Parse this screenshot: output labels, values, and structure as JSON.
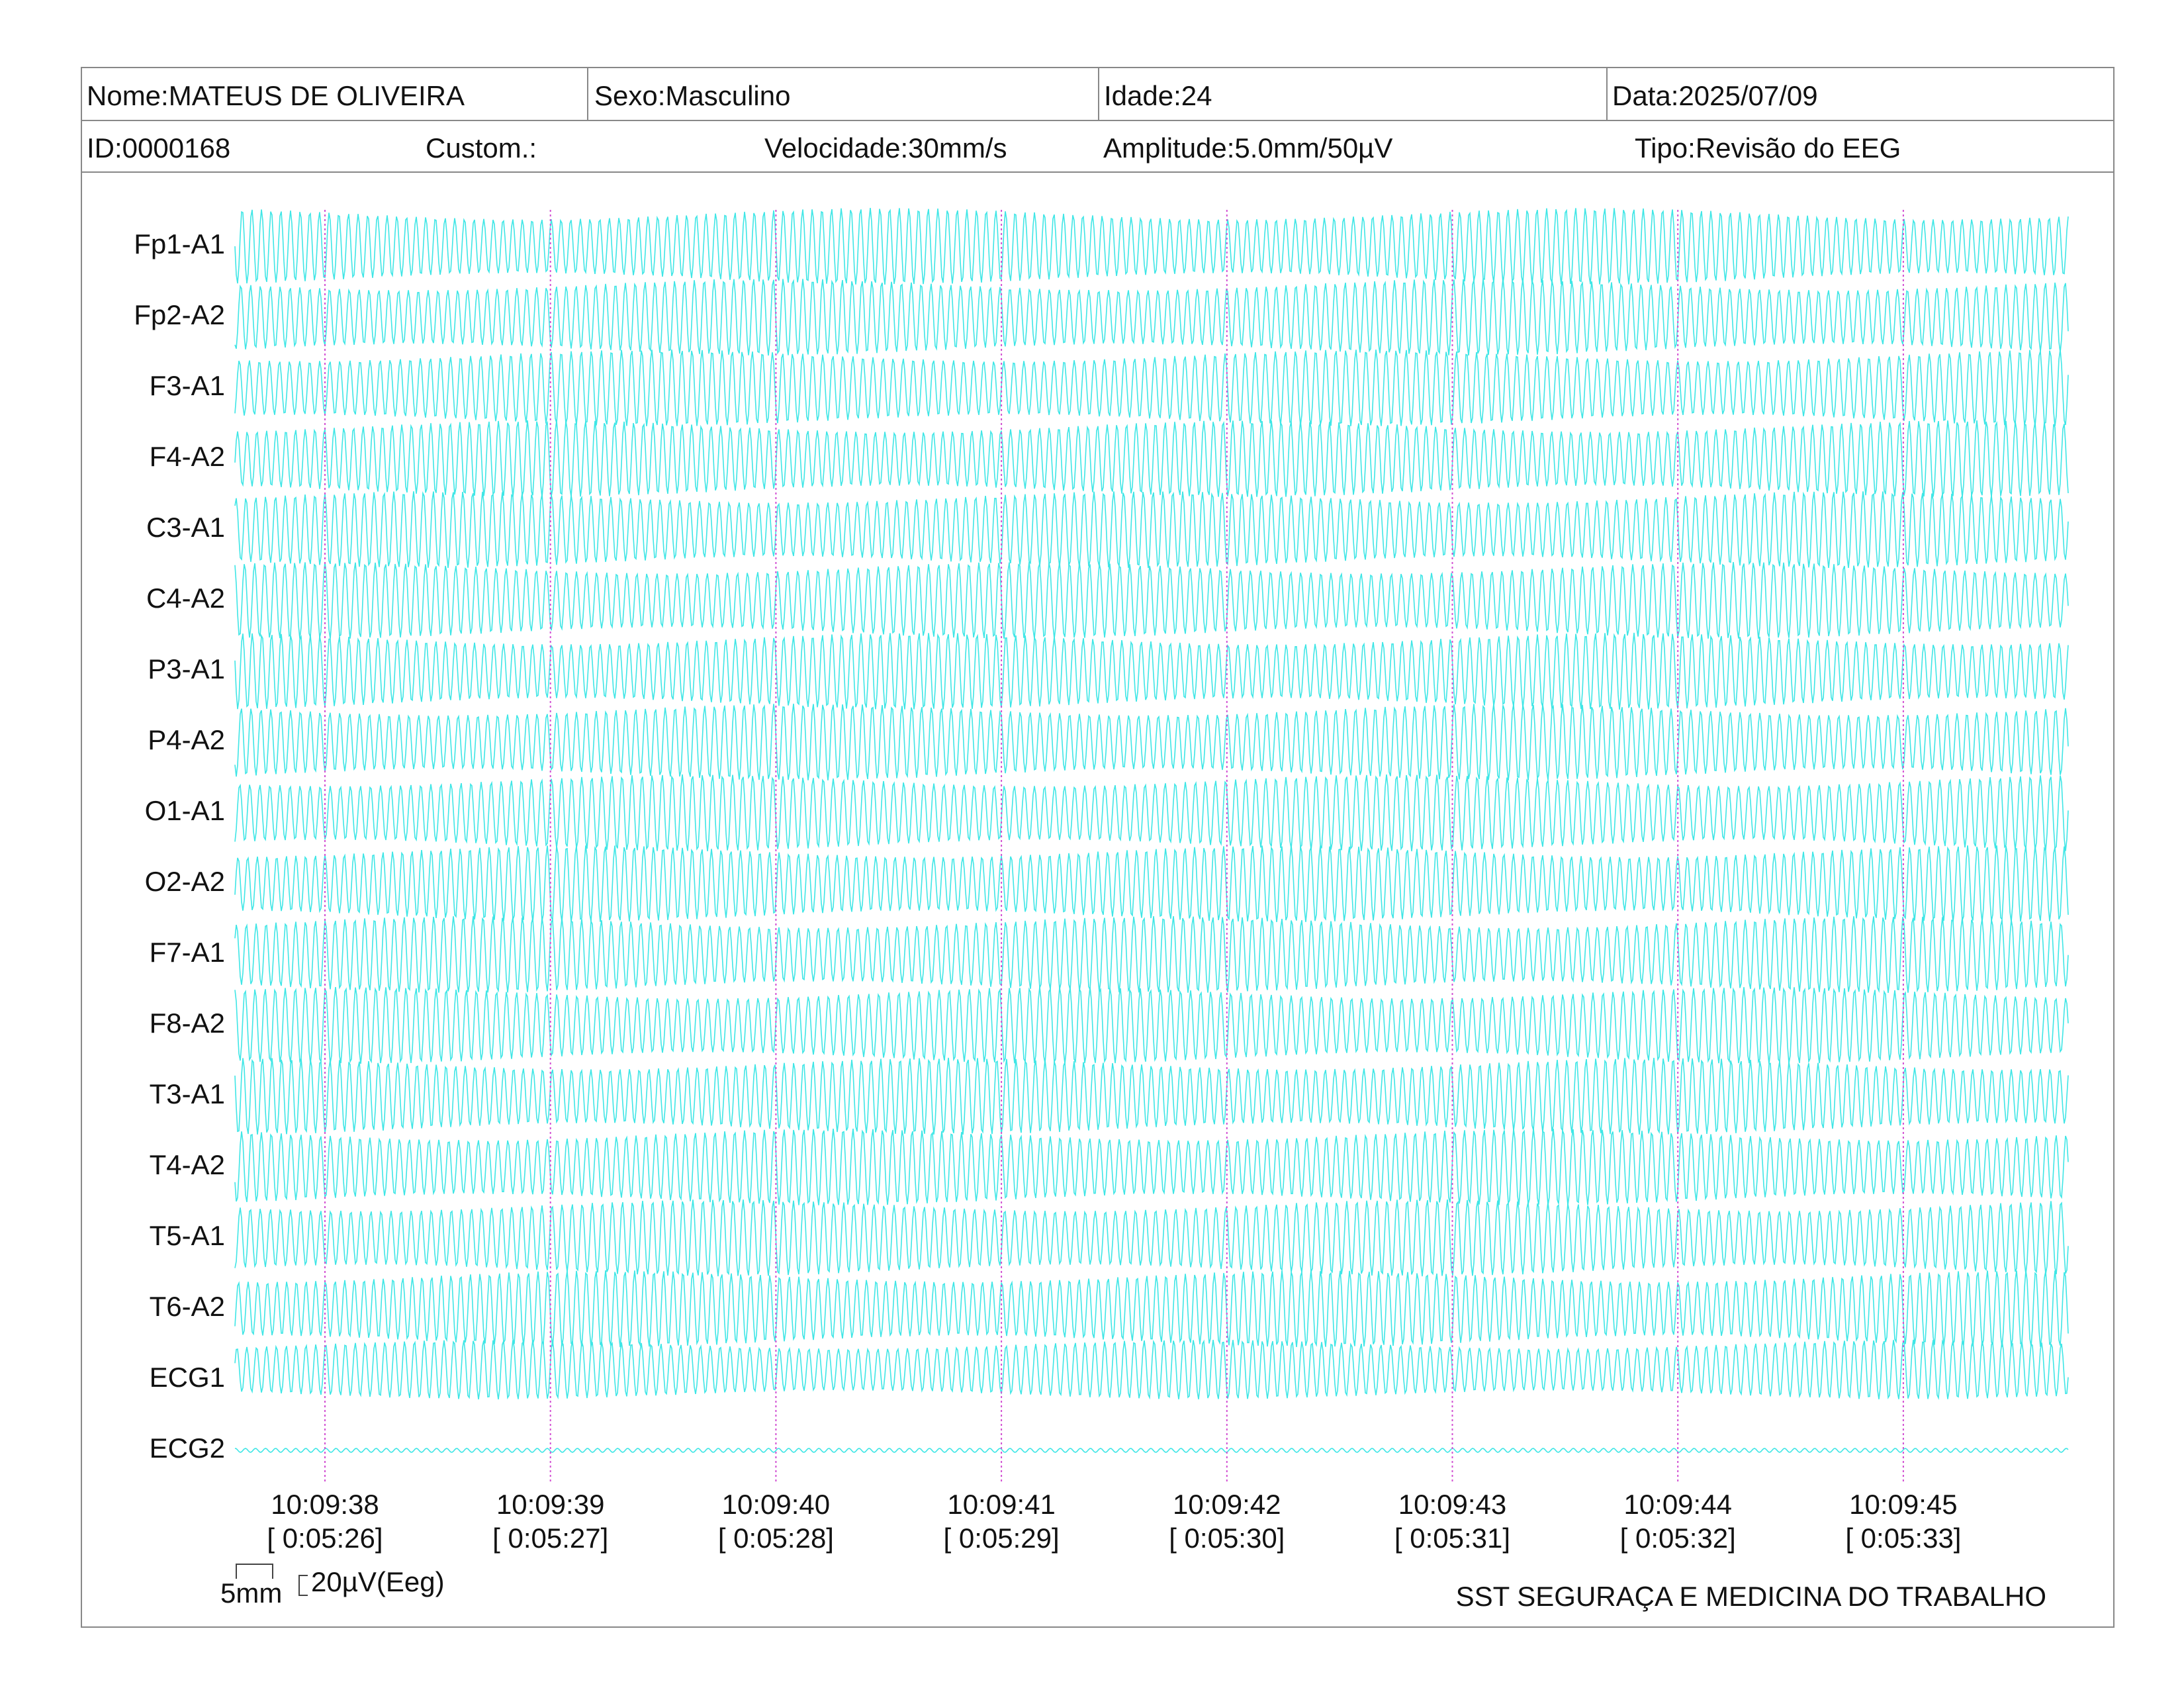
{
  "header": {
    "name": "Nome:MATEUS DE OLIVEIRA",
    "sex": "Sexo:Masculino",
    "age": "Idade:24",
    "date": "Data:2025/07/09"
  },
  "info": {
    "id": "ID:0000168",
    "custom": "Custom.:",
    "speed": "Velocidade:30mm/s",
    "amplitude": "Amplitude:5.0mm/50µV",
    "type": "Tipo:Revisão do EEG"
  },
  "channels": [
    "Fp1-A1",
    "Fp2-A2",
    "F3-A1",
    "F4-A2",
    "C3-A1",
    "C4-A2",
    "P3-A1",
    "P4-A2",
    "O1-A1",
    "O2-A2",
    "F7-A1",
    "F8-A2",
    "T3-A1",
    "T4-A2",
    "T5-A1",
    "T6-A2",
    "ECG1",
    "ECG2"
  ],
  "times": [
    {
      "clock": "10:09:38",
      "elapsed": "[ 0:05:26]"
    },
    {
      "clock": "10:09:39",
      "elapsed": "[ 0:05:27]"
    },
    {
      "clock": "10:09:40",
      "elapsed": "[ 0:05:28]"
    },
    {
      "clock": "10:09:41",
      "elapsed": "[ 0:05:29]"
    },
    {
      "clock": "10:09:42",
      "elapsed": "[ 0:05:30]"
    },
    {
      "clock": "10:09:43",
      "elapsed": "[ 0:05:31]"
    },
    {
      "clock": "10:09:44",
      "elapsed": "[ 0:05:32]"
    },
    {
      "clock": "10:09:45",
      "elapsed": "[ 0:05:33]"
    }
  ],
  "scale": {
    "width": "5mm",
    "amplitude": "20µV(Eeg)"
  },
  "footer": "SST SEGURAÇA E MEDICINA DO TRABALHO"
}
